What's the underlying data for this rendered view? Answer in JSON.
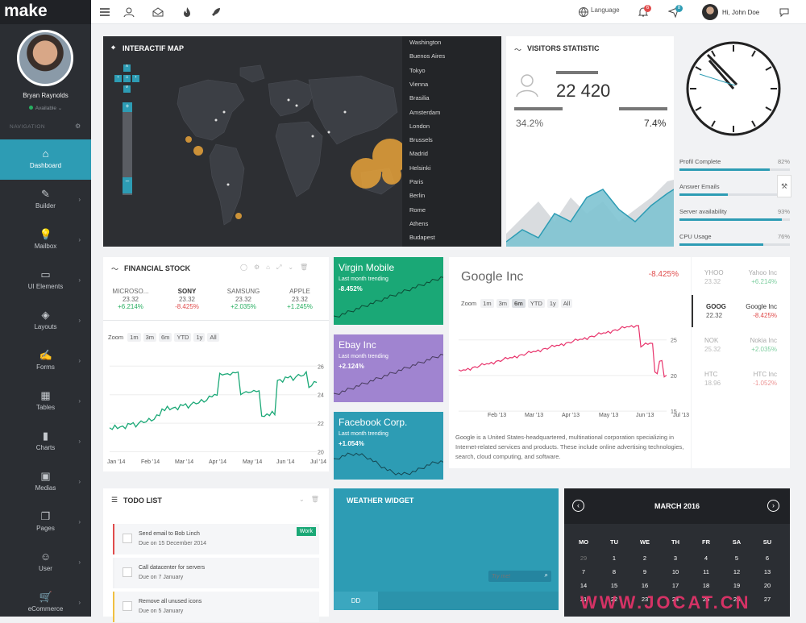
{
  "sidebar": {
    "logo": "make",
    "user_name": "Bryan Raynolds",
    "user_status": "Available",
    "nav_label": "NAVIGATION",
    "items": [
      {
        "label": "Dashboard",
        "icon": "home-icon"
      },
      {
        "label": "Builder",
        "icon": "builder-icon"
      },
      {
        "label": "Mailbox",
        "icon": "lightbulb-icon"
      },
      {
        "label": "UI Elements",
        "icon": "monitor-icon"
      },
      {
        "label": "Layouts",
        "icon": "layers-icon"
      },
      {
        "label": "Forms",
        "icon": "edit-icon"
      },
      {
        "label": "Tables",
        "icon": "table-icon"
      },
      {
        "label": "Charts",
        "icon": "bar-chart-icon"
      },
      {
        "label": "Medias",
        "icon": "image-icon"
      },
      {
        "label": "Pages",
        "icon": "pages-icon"
      },
      {
        "label": "User",
        "icon": "user-icon"
      },
      {
        "label": "eCommerce",
        "icon": "cart-icon"
      }
    ]
  },
  "topbar": {
    "language": "Language",
    "notif_count": "6",
    "messages_count": "8",
    "greeting": "Hi, John Doe"
  },
  "map": {
    "title": "INTERACTIF MAP",
    "cities": [
      "Washington",
      "Buenos Aires",
      "Tokyo",
      "Vienna",
      "Brasilia",
      "Amsterdam",
      "London",
      "Brussels",
      "Madrid",
      "Helsinki",
      "Paris",
      "Berlin",
      "Rome",
      "Athens",
      "Budapest"
    ]
  },
  "visitors": {
    "title": "VISITORS STATISTIC",
    "count": "22 420",
    "pct_left": "34.2%",
    "pct_right": "7.4%"
  },
  "skills": [
    {
      "label": "Profil Complete",
      "value": "82%",
      "fill": 0.82
    },
    {
      "label": "Answer Emails",
      "value": "",
      "fill": 0.44
    },
    {
      "label": "Server availability",
      "value": "93%",
      "fill": 0.93
    },
    {
      "label": "CPU Usage",
      "value": "76%",
      "fill": 0.76
    }
  ],
  "finance": {
    "title": "FINANCIAL STOCK",
    "stocks": [
      {
        "name": "MICROSO...",
        "value": "23.32",
        "change": "+6.214%",
        "dir": "pos"
      },
      {
        "name": "SONY",
        "value": "23.32",
        "change": "-8.425%",
        "dir": "neg"
      },
      {
        "name": "SAMSUNG",
        "value": "23.32",
        "change": "+2.035%",
        "dir": "pos"
      },
      {
        "name": "APPLE",
        "value": "23.32",
        "change": "+1.245%",
        "dir": "pos"
      }
    ],
    "zoom_label": "Zoom",
    "zoom_options": [
      "1m",
      "3m",
      "6m",
      "YTD",
      "1y",
      "All"
    ],
    "x_ticks": [
      "Jan '14",
      "Feb '14",
      "Mar '14",
      "Apr '14",
      "May '14",
      "Jun '14",
      "Jul '14"
    ],
    "y_ticks": [
      "26",
      "24",
      "22",
      "20"
    ]
  },
  "tiles": [
    {
      "title": "Virgin Mobile",
      "label": "Last month trending",
      "value": "-8.452%"
    },
    {
      "title": "Ebay Inc",
      "label": "Last month trending",
      "value": "+2.124%"
    },
    {
      "title": "Facebook Corp.",
      "label": "Last month trending",
      "value": "+1.054%"
    }
  ],
  "google": {
    "title": "Google Inc",
    "change": "-8.425%",
    "zoom_label": "Zoom",
    "zoom_options": [
      "1m",
      "3m",
      "6m",
      "YTD",
      "1y",
      "All"
    ],
    "x_ticks": [
      "Feb '13",
      "Mar '13",
      "Apr '13",
      "May '13",
      "Jun '13",
      "Jul '13"
    ],
    "y_ticks": [
      "25",
      "20",
      "15"
    ],
    "description": "Google is a United States-headquartered, multinational corporation specializing in Internet-related services and products. These include online advertising technologies, search, cloud computing, and software."
  },
  "stock_selector": [
    {
      "sym": "YHOO",
      "price": "23.32",
      "name": "Yahoo Inc",
      "change": "+6.214%",
      "dir": "pos",
      "active": false
    },
    {
      "sym": "GOOG",
      "price": "22.32",
      "name": "Google Inc",
      "change": "-8.425%",
      "dir": "neg",
      "active": true
    },
    {
      "sym": "NOK",
      "price": "25.32",
      "name": "Nokia Inc",
      "change": "+2.035%",
      "dir": "pos",
      "active": false
    },
    {
      "sym": "HTC",
      "price": "18.96",
      "name": "HTC Inc",
      "change": "-1.052%",
      "dir": "neg",
      "active": false
    }
  ],
  "todo": {
    "title": "TODO LIST",
    "items": [
      {
        "text": "Send email to Bob Linch",
        "due": "Due on 15 December 2014",
        "tag": "Work"
      },
      {
        "text": "Call datacenter for servers",
        "due": "Due on 7 January",
        "tag": ""
      },
      {
        "text": "Remove all unused icons",
        "due": "Due on 5 January",
        "tag": ""
      }
    ]
  },
  "weather": {
    "title": "WEATHER WIDGET",
    "search_placeholder": "Try me!",
    "tab": "DD"
  },
  "calendar": {
    "month": "MARCH 2016",
    "weekdays": [
      "MO",
      "TU",
      "WE",
      "TH",
      "FR",
      "SA",
      "SU"
    ],
    "rows": [
      [
        "29",
        "1",
        "2",
        "3",
        "4",
        "5",
        "6"
      ],
      [
        "7",
        "8",
        "9",
        "10",
        "11",
        "12",
        "13"
      ],
      [
        "14",
        "15",
        "16",
        "17",
        "18",
        "19",
        "20"
      ],
      [
        "21",
        "22",
        "23",
        "24",
        "25",
        "26",
        "27"
      ]
    ]
  },
  "watermark": "WWW.JOCAT.CN"
}
